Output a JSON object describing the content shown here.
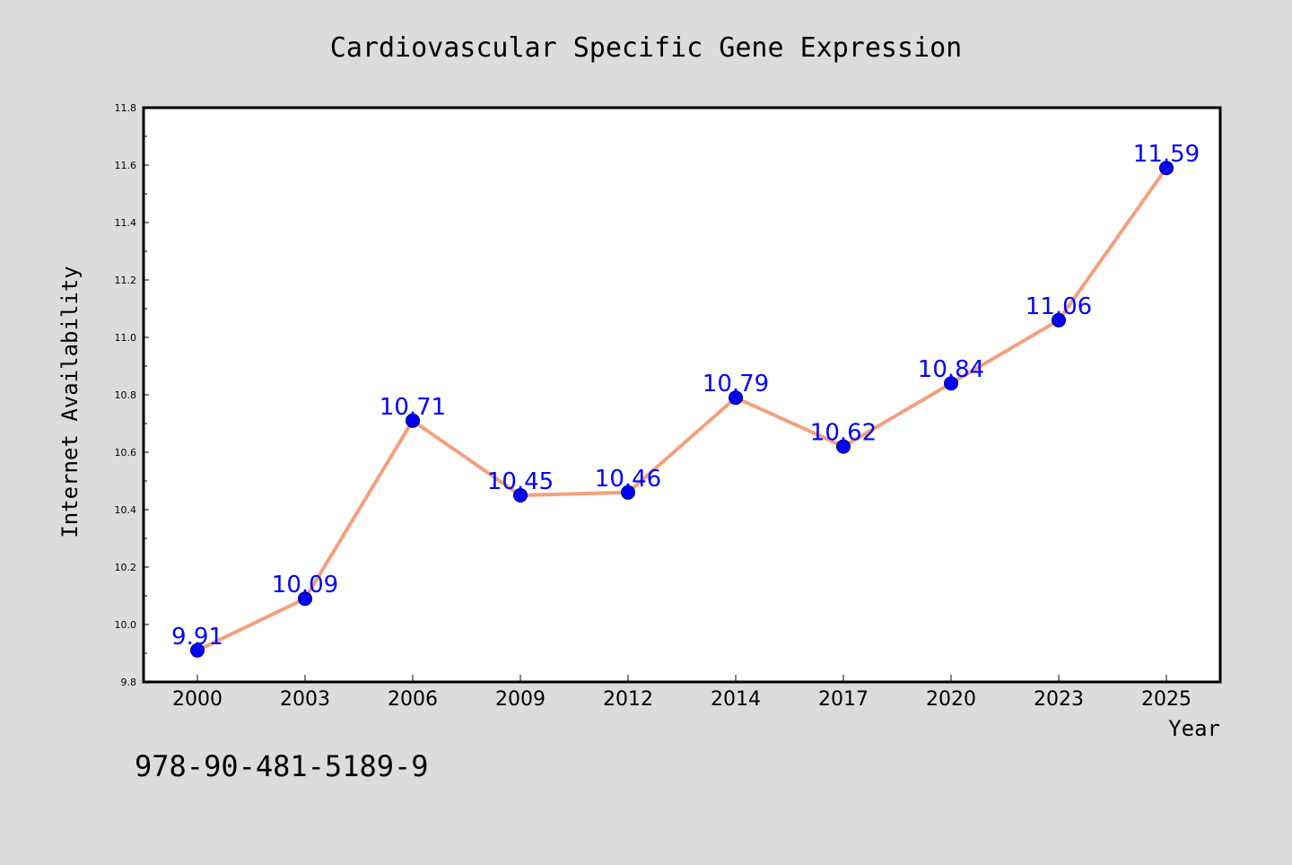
{
  "chart_data": {
    "type": "line",
    "title": "Cardiovascular Specific Gene Expression",
    "xlabel": "Year",
    "ylabel": "Internet Availability",
    "categories": [
      "2000",
      "2003",
      "2006",
      "2009",
      "2012",
      "2014",
      "2017",
      "2020",
      "2023",
      "2025"
    ],
    "series": [
      {
        "values": [
          9.91,
          10.09,
          10.71,
          10.45,
          10.46,
          10.79,
          10.62,
          10.84,
          11.06,
          11.59
        ]
      }
    ],
    "data_labels": [
      "9.91",
      "10.09",
      "10.71",
      "10.45",
      "10.46",
      "10.79",
      "10.62",
      "10.84",
      "11.06",
      "11.59"
    ],
    "ylim": [
      9.8,
      11.8
    ],
    "yticks": [
      "9.8",
      "10.0",
      "10.2",
      "10.4",
      "10.6",
      "10.8",
      "11.0",
      "11.2",
      "11.4",
      "11.6",
      "11.8"
    ],
    "grid": false,
    "legend": "none",
    "colors": {
      "background": "#dcdcdc",
      "plot_background": "#ffffff",
      "line": "#f4a07c",
      "marker": "#0000ff",
      "data_label": "#0000ff"
    }
  },
  "annotation": {
    "isbn": "978-90-481-5189-9"
  }
}
